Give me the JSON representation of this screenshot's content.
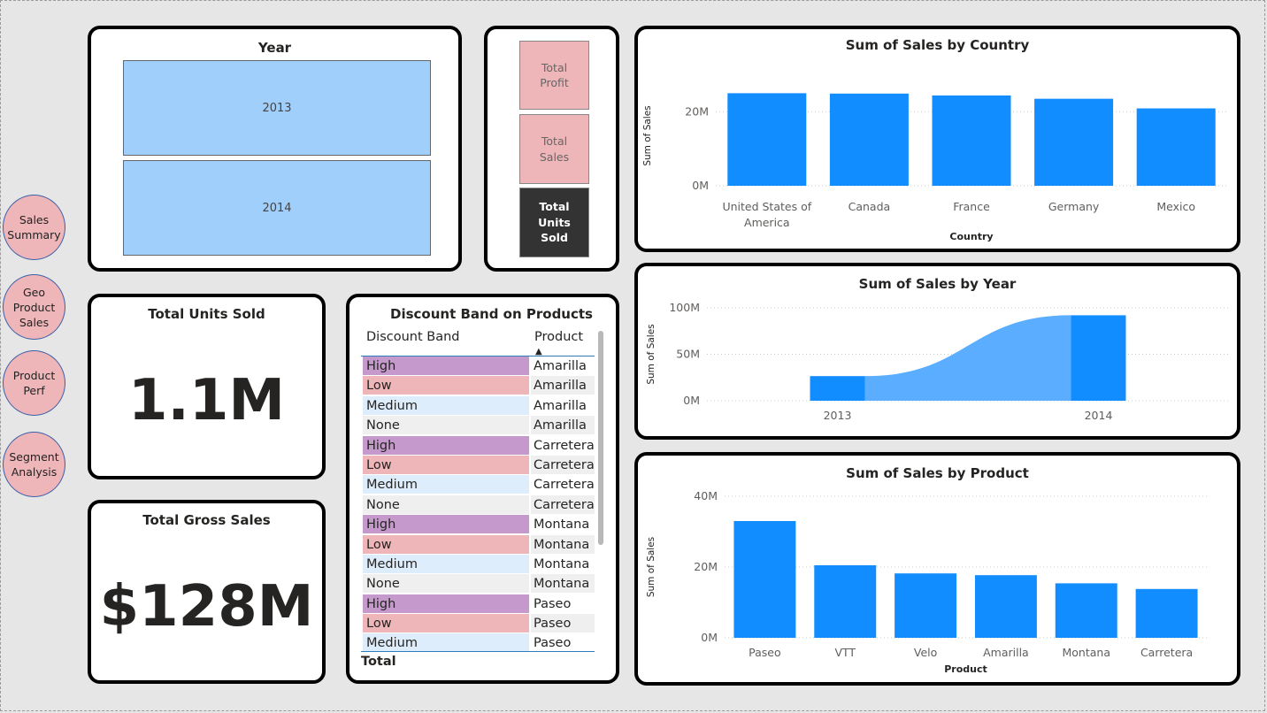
{
  "nav": [
    "Sales\nSummary",
    "Geo\nProduct\nSales",
    "Product\nPerf",
    "Segment\nAnalysis"
  ],
  "year_slicer": {
    "title": "Year",
    "options": [
      "2013",
      "2014"
    ]
  },
  "measure_buttons": [
    {
      "label": "Total\nProfit",
      "selected": false
    },
    {
      "label": "Total\nSales",
      "selected": false
    },
    {
      "label": "Total\nUnits\nSold",
      "selected": true
    }
  ],
  "kpi_units": {
    "title": "Total Units Sold",
    "value": "1.1M"
  },
  "kpi_gross": {
    "title": "Total Gross Sales",
    "value": "$128M"
  },
  "table": {
    "title": "Discount Band on Products",
    "headers": [
      "Discount Band",
      "Product"
    ],
    "rows": [
      [
        "High",
        "Amarilla"
      ],
      [
        "Low",
        "Amarilla"
      ],
      [
        "Medium",
        "Amarilla"
      ],
      [
        "None",
        "Amarilla"
      ],
      [
        "High",
        "Carretera"
      ],
      [
        "Low",
        "Carretera"
      ],
      [
        "Medium",
        "Carretera"
      ],
      [
        "None",
        "Carretera"
      ],
      [
        "High",
        "Montana"
      ],
      [
        "Low",
        "Montana"
      ],
      [
        "Medium",
        "Montana"
      ],
      [
        "None",
        "Montana"
      ],
      [
        "High",
        "Paseo"
      ],
      [
        "Low",
        "Paseo"
      ],
      [
        "Medium",
        "Paseo"
      ]
    ],
    "total_label": "Total",
    "band_colors": {
      "High": "#c599cb",
      "Low": "#efb6b9",
      "Medium": "#deedfc",
      "None": "#efefef"
    }
  },
  "colors": {
    "bar": "#118dff",
    "ribbon": "#5aadff",
    "slicer": "#a0cffc",
    "button": "#efb6b9",
    "button_selected": "#333333"
  },
  "chart_data": [
    {
      "type": "bar",
      "title": "Sum of Sales by Country",
      "xlabel": "Country",
      "ylabel": "Sum of Sales",
      "categories": [
        "United States of America",
        "Canada",
        "France",
        "Germany",
        "Mexico"
      ],
      "category_labels": [
        [
          "United States of",
          "America"
        ],
        [
          "Canada"
        ],
        [
          "France"
        ],
        [
          "Germany"
        ],
        [
          "Mexico"
        ]
      ],
      "values": [
        25.0,
        24.9,
        24.4,
        23.5,
        20.9
      ],
      "unit": "M",
      "ylim": [
        0,
        27
      ],
      "yticks": [
        0,
        20
      ],
      "ytick_labels": [
        "0M",
        "20M"
      ],
      "grid": true
    },
    {
      "type": "bar",
      "title": "Sum of Sales by Year",
      "xlabel": "",
      "ylabel": "Sum of Sales",
      "categories": [
        "2013",
        "2014"
      ],
      "values": [
        26.5,
        92.0
      ],
      "unit": "M",
      "ylim": [
        0,
        100
      ],
      "yticks": [
        0,
        50,
        100
      ],
      "ytick_labels": [
        "0M",
        "50M",
        "100M"
      ],
      "grid": true
    },
    {
      "type": "bar",
      "title": "Sum of Sales by Product",
      "xlabel": "Product",
      "ylabel": "Sum of Sales",
      "categories": [
        "Paseo",
        "VTT",
        "Velo",
        "Amarilla",
        "Montana",
        "Carretera"
      ],
      "values": [
        33.0,
        20.5,
        18.2,
        17.7,
        15.4,
        13.8
      ],
      "unit": "M",
      "ylim": [
        0,
        40
      ],
      "yticks": [
        0,
        20,
        40
      ],
      "ytick_labels": [
        "0M",
        "20M",
        "40M"
      ],
      "grid": true
    }
  ]
}
